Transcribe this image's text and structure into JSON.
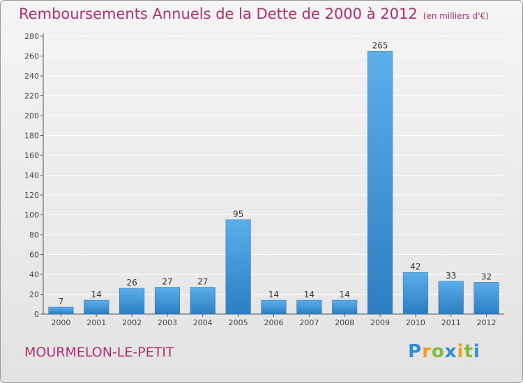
{
  "title": "Remboursements Annuels de la Dette de 2000 à 2012",
  "subtitle": "(en milliers d'€)",
  "commune": "MOURMELON-LE-PETIT",
  "logo": {
    "p": "P",
    "r": "r",
    "o": "o",
    "x": "x",
    "i": "i",
    "t": "t",
    "j": "i"
  },
  "colors": {
    "title": "#b0306e",
    "bar_light": "#5aaeea",
    "bar_dark": "#2b7fc2",
    "grid": "#ffffff"
  },
  "chart_data": {
    "type": "bar",
    "title": "Remboursements Annuels de la Dette de 2000 à 2012",
    "xlabel": "",
    "ylabel": "",
    "categories": [
      "2000",
      "2001",
      "2002",
      "2003",
      "2004",
      "2005",
      "2006",
      "2007",
      "2008",
      "2009",
      "2010",
      "2011",
      "2012"
    ],
    "values": [
      7,
      14,
      26,
      27,
      27,
      95,
      14,
      14,
      14,
      265,
      42,
      33,
      32
    ],
    "ylim": [
      0,
      280
    ],
    "yticks": [
      0,
      20,
      40,
      60,
      80,
      100,
      120,
      140,
      160,
      180,
      200,
      220,
      240,
      260,
      280
    ],
    "grid": true
  }
}
